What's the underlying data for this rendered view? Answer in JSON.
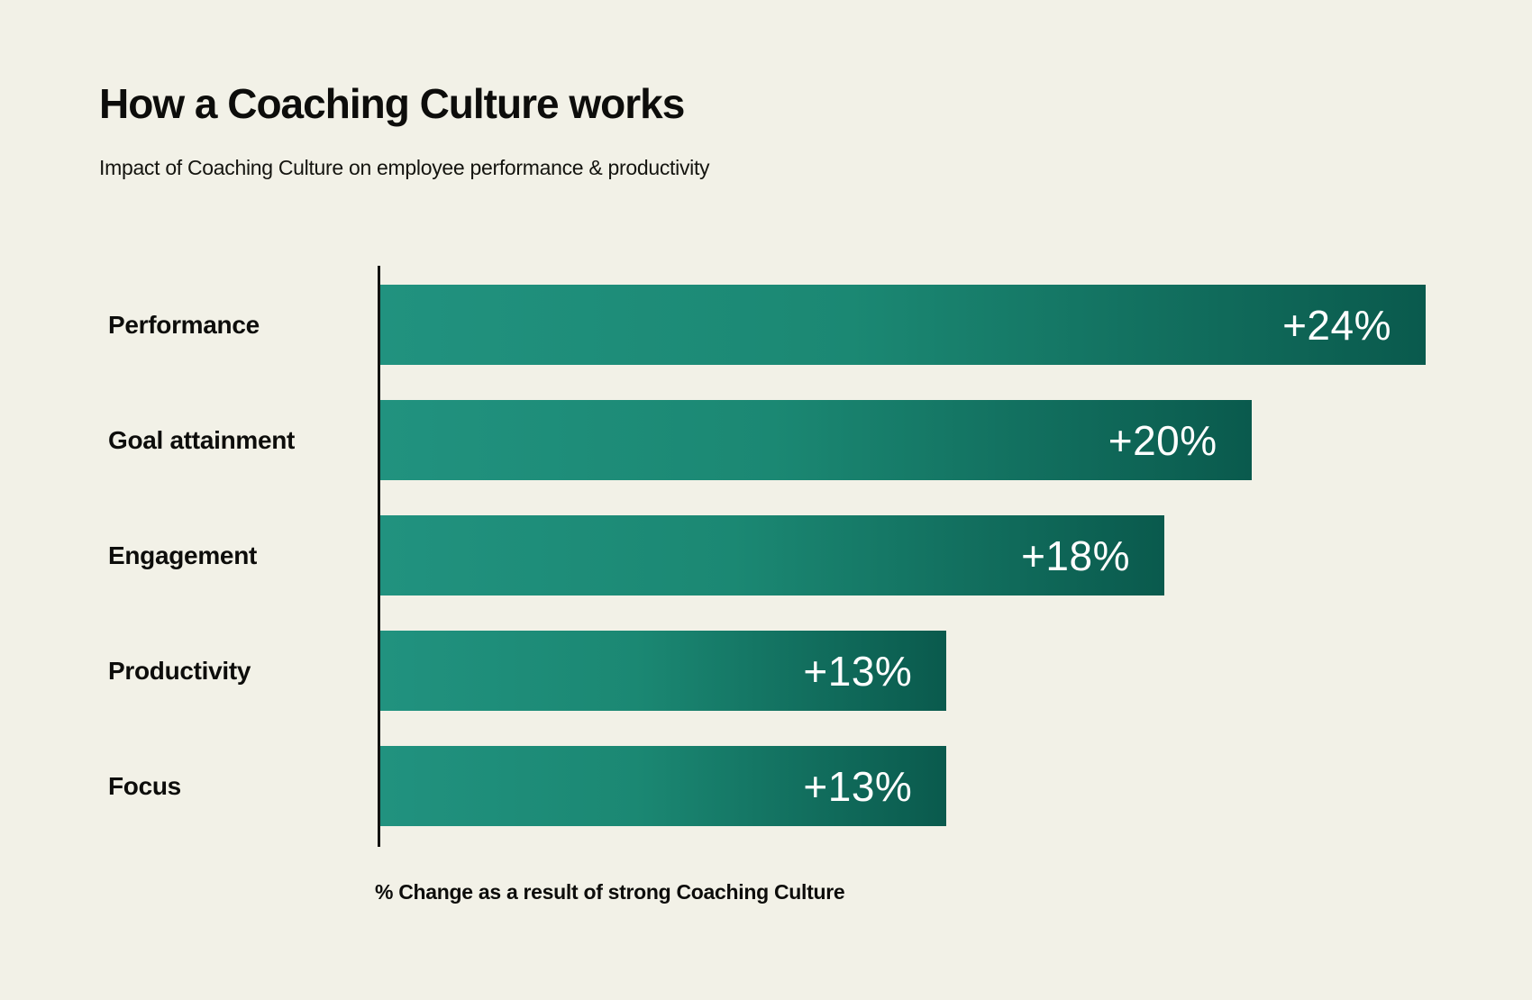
{
  "page": {
    "background_color": "#F2F1E7",
    "text_color": "#0D0D0B"
  },
  "header": {
    "title": "How a Coaching Culture works",
    "subtitle": "Impact of Coaching Culture on employee performance & productivity"
  },
  "chart_data": {
    "type": "bar",
    "orientation": "horizontal",
    "title": "How a Coaching Culture works",
    "subtitle": "Impact of Coaching Culture on employee performance & productivity",
    "categories": [
      "Performance",
      "Goal attainment",
      "Engagement",
      "Productivity",
      "Focus"
    ],
    "values": [
      24,
      20,
      18,
      13,
      13
    ],
    "value_labels": [
      "+24%",
      "+20%",
      "+18%",
      "+13%",
      "+13%"
    ],
    "xlabel": "% Change as a result of strong Coaching Culture",
    "xlim": [
      0,
      24
    ],
    "grid": false,
    "legend": false,
    "bar_gradient_start": "#21927F",
    "bar_gradient_end": "#0A5A4D",
    "axis_color": "#131311",
    "value_label_color": "#FFFFFF"
  }
}
